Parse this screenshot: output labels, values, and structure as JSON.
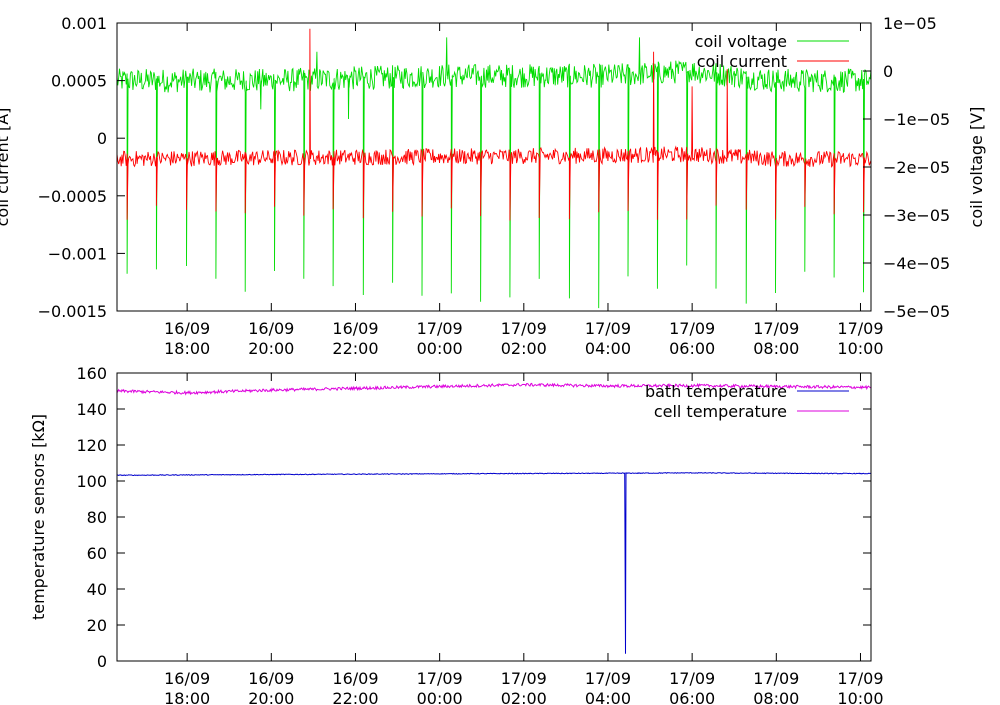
{
  "chart_data": [
    {
      "type": "line",
      "title": "",
      "xlabel": "",
      "ylabel": "coil current [A]",
      "y2label": "coil voltage [V]",
      "ylim": [
        -0.0015,
        0.001
      ],
      "y2lim": [
        -5e-05,
        1e-05
      ],
      "yticks": [
        "0.001",
        "0.0005",
        "0",
        "−0.0005",
        "−0.001",
        "−0.0015"
      ],
      "yticks_values": [
        0.001,
        0.0005,
        0,
        -0.0005,
        -0.001,
        -0.0015
      ],
      "y2ticks": [
        "1e−05",
        "0",
        "−1e−05",
        "−2e−05",
        "−3e−05",
        "−4e−05",
        "−5e−05"
      ],
      "y2ticks_values": [
        1e-05,
        0,
        -1e-05,
        -2e-05,
        -3e-05,
        -4e-05,
        -5e-05
      ],
      "xlim": [
        "16/09 16:20",
        "17/09 10:15"
      ],
      "xticks": [
        {
          "date": "16/09",
          "time": "18:00"
        },
        {
          "date": "16/09",
          "time": "20:00"
        },
        {
          "date": "16/09",
          "time": "22:00"
        },
        {
          "date": "17/09",
          "time": "00:00"
        },
        {
          "date": "17/09",
          "time": "02:00"
        },
        {
          "date": "17/09",
          "time": "04:00"
        },
        {
          "date": "17/09",
          "time": "06:00"
        },
        {
          "date": "17/09",
          "time": "08:00"
        },
        {
          "date": "17/09",
          "time": "10:00"
        }
      ],
      "legend_position": "top-right",
      "series": [
        {
          "name": "coil voltage",
          "axis": "right",
          "color": "#00dd00",
          "baseline": -2e-06,
          "noise_amplitude": 2.5e-06,
          "periodic_dip": {
            "value": -4.5e-05,
            "approx_period_minutes": 30
          },
          "spikes": [
            {
              "x": "16/09 19:45",
              "y": -8e-06
            },
            {
              "x": "16/09 21:05",
              "y": 4e-06
            },
            {
              "x": "16/09 21:50",
              "y": -1e-05
            },
            {
              "x": "17/09 00:10",
              "y": 7e-06
            },
            {
              "x": "17/09 04:45",
              "y": 7e-06
            },
            {
              "x": "17/09 07:00",
              "y": 0
            }
          ],
          "x": [
            "16/09 16:20",
            "16/09 20:00",
            "17/09 00:00",
            "17/09 04:00",
            "17/09 06:00",
            "17/09 08:00",
            "17/09 10:15"
          ],
          "y": [
            -2e-06,
            -2e-06,
            -1e-06,
            -1e-06,
            0,
            -2e-06,
            -2e-06
          ]
        },
        {
          "name": "coil current",
          "axis": "left",
          "color": "#ff0000",
          "baseline": -0.00018,
          "noise_amplitude": 7e-05,
          "periodic_dip": {
            "value": -0.00065,
            "approx_period_minutes": 30
          },
          "spikes": [
            {
              "x": "16/09 20:55",
              "y": 0.00095
            },
            {
              "x": "17/09 05:05",
              "y": 0.00075
            },
            {
              "x": "17/09 06:00",
              "y": 0.00045
            },
            {
              "x": "17/09 06:50",
              "y": 0.0006
            }
          ],
          "x": [
            "16/09 16:20",
            "16/09 20:00",
            "17/09 00:00",
            "17/09 04:00",
            "17/09 06:00",
            "17/09 08:00",
            "17/09 10:15"
          ],
          "y": [
            -0.00018,
            -0.00017,
            -0.00016,
            -0.00015,
            -0.00014,
            -0.00018,
            -0.00018
          ]
        }
      ]
    },
    {
      "type": "line",
      "title": "",
      "xlabel": "",
      "ylabel": "temperature sensors [kΩ]",
      "ylim": [
        0,
        160
      ],
      "yticks": [
        "160",
        "140",
        "120",
        "100",
        "80",
        "60",
        "40",
        "20",
        "0"
      ],
      "yticks_values": [
        160,
        140,
        120,
        100,
        80,
        60,
        40,
        20,
        0
      ],
      "xlim": [
        "16/09 16:20",
        "17/09 10:15"
      ],
      "xticks": [
        {
          "date": "16/09",
          "time": "18:00"
        },
        {
          "date": "16/09",
          "time": "20:00"
        },
        {
          "date": "16/09",
          "time": "22:00"
        },
        {
          "date": "17/09",
          "time": "00:00"
        },
        {
          "date": "17/09",
          "time": "02:00"
        },
        {
          "date": "17/09",
          "time": "04:00"
        },
        {
          "date": "17/09",
          "time": "06:00"
        },
        {
          "date": "17/09",
          "time": "08:00"
        },
        {
          "date": "17/09",
          "time": "10:00"
        }
      ],
      "legend_position": "top-right",
      "series": [
        {
          "name": "bath temperature",
          "color": "#0000cc",
          "noise_amplitude": 0.2,
          "spikes": [
            {
              "x": "17/09 04:25",
              "y": 4
            }
          ],
          "x": [
            "16/09 16:20",
            "16/09 20:00",
            "17/09 00:00",
            "17/09 04:00",
            "17/09 06:00",
            "17/09 08:00",
            "17/09 10:15"
          ],
          "y": [
            103.2,
            103.6,
            104.0,
            104.3,
            104.5,
            104.3,
            104.1
          ]
        },
        {
          "name": "cell temperature",
          "color": "#dd00dd",
          "noise_amplitude": 0.8,
          "spikes": [],
          "x": [
            "16/09 16:20",
            "16/09 18:00",
            "16/09 20:00",
            "16/09 22:00",
            "17/09 00:00",
            "17/09 02:00",
            "17/09 04:00",
            "17/09 06:00",
            "17/09 08:00",
            "17/09 10:15"
          ],
          "y": [
            150.0,
            149.0,
            150.5,
            151.5,
            152.5,
            153.5,
            152.8,
            153.0,
            152.5,
            152.0
          ]
        }
      ]
    }
  ]
}
